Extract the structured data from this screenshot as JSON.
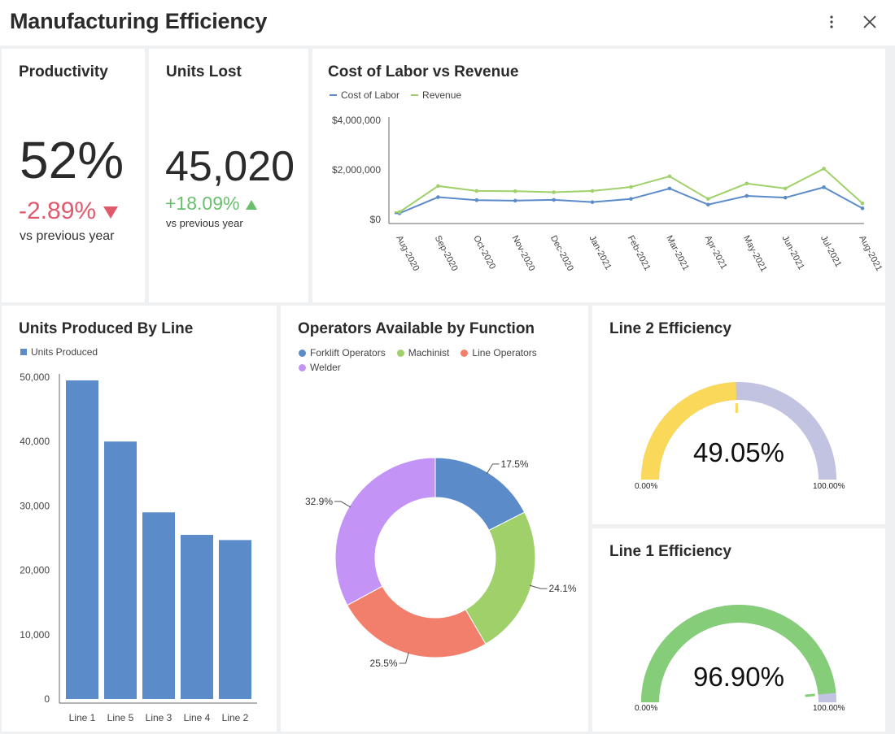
{
  "window": {
    "title": "Manufacturing Efficiency"
  },
  "icons": {
    "more": "more-vertical-icon",
    "close": "close-icon"
  },
  "colors": {
    "blue": "#5b8bc9",
    "green": "#9fd06a",
    "red": "#f27f6c",
    "purple": "#c394f6",
    "yellow": "#f9d85a",
    "lavender": "#c2c3e0",
    "gauge_green": "#85cd78",
    "negative": "#e05a6d",
    "positive": "#6abf6d"
  },
  "productivity": {
    "title": "Productivity",
    "value": "52%",
    "delta": "-2.89%",
    "sub": "vs previous year"
  },
  "units_lost": {
    "title": "Units Lost",
    "value": "45,020",
    "delta": "+18.09%",
    "sub": "vs previous year"
  },
  "labor_chart": {
    "title": "Cost of Labor vs Revenue"
  },
  "bar_chart": {
    "title": "Units Produced By Line"
  },
  "donut_chart": {
    "title": "Operators Available by Function"
  },
  "line2": {
    "title": "Line 2 Efficiency",
    "value": "49.05%",
    "min": "0.00%",
    "max": "100.00%"
  },
  "line1": {
    "title": "Line 1 Efficiency",
    "value": "96.90%",
    "min": "0.00%",
    "max": "100.00%"
  },
  "chart_data": [
    {
      "type": "line",
      "title": "Cost of Labor vs Revenue",
      "x": [
        "Aug-2020",
        "Sep-2020",
        "Oct-2020",
        "Nov-2020",
        "Dec-2020",
        "Jan-2021",
        "Feb-2021",
        "Mar-2021",
        "Apr-2021",
        "May-2021",
        "Jun-2021",
        "Jul-2021",
        "Aug-2021"
      ],
      "y_ticks": [
        "$0",
        "$2,000,000",
        "$4,000,000"
      ],
      "ylim": [
        0,
        4000000
      ],
      "legend": "top-left",
      "series": [
        {
          "name": "Cost of Labor",
          "color": "#5b8bc9",
          "values": [
            250000,
            900000,
            780000,
            760000,
            790000,
            700000,
            830000,
            1250000,
            600000,
            950000,
            880000,
            1300000,
            450000
          ]
        },
        {
          "name": "Revenue",
          "color": "#9fd06a",
          "values": [
            300000,
            1350000,
            1150000,
            1140000,
            1100000,
            1150000,
            1310000,
            1740000,
            830000,
            1450000,
            1250000,
            2050000,
            650000
          ]
        }
      ]
    },
    {
      "type": "bar",
      "title": "Units Produced By Line",
      "categories": [
        "Line 1",
        "Line 5",
        "Line 3",
        "Line 4",
        "Line 2"
      ],
      "y_ticks": [
        "0",
        "10,000",
        "20,000",
        "30,000",
        "40,000",
        "50,000"
      ],
      "ylim": [
        0,
        50000
      ],
      "legend": "top-left",
      "series": [
        {
          "name": "Units Produced",
          "color": "#5b8bc9",
          "values": [
            49500,
            40000,
            29000,
            25500,
            24700
          ]
        }
      ]
    },
    {
      "type": "pie",
      "title": "Operators Available by Function",
      "legend": "top-left",
      "slices": [
        {
          "name": "Forklift Operators",
          "value": 17.5,
          "label": "17.5%",
          "color": "#5b8bc9"
        },
        {
          "name": "Machinist",
          "value": 24.1,
          "label": "24.1%",
          "color": "#9fd06a"
        },
        {
          "name": "Line Operators",
          "value": 25.5,
          "label": "25.5%",
          "color": "#f27f6c"
        },
        {
          "name": "Welder",
          "value": 32.9,
          "label": "32.9%",
          "color": "#c394f6"
        }
      ]
    }
  ]
}
